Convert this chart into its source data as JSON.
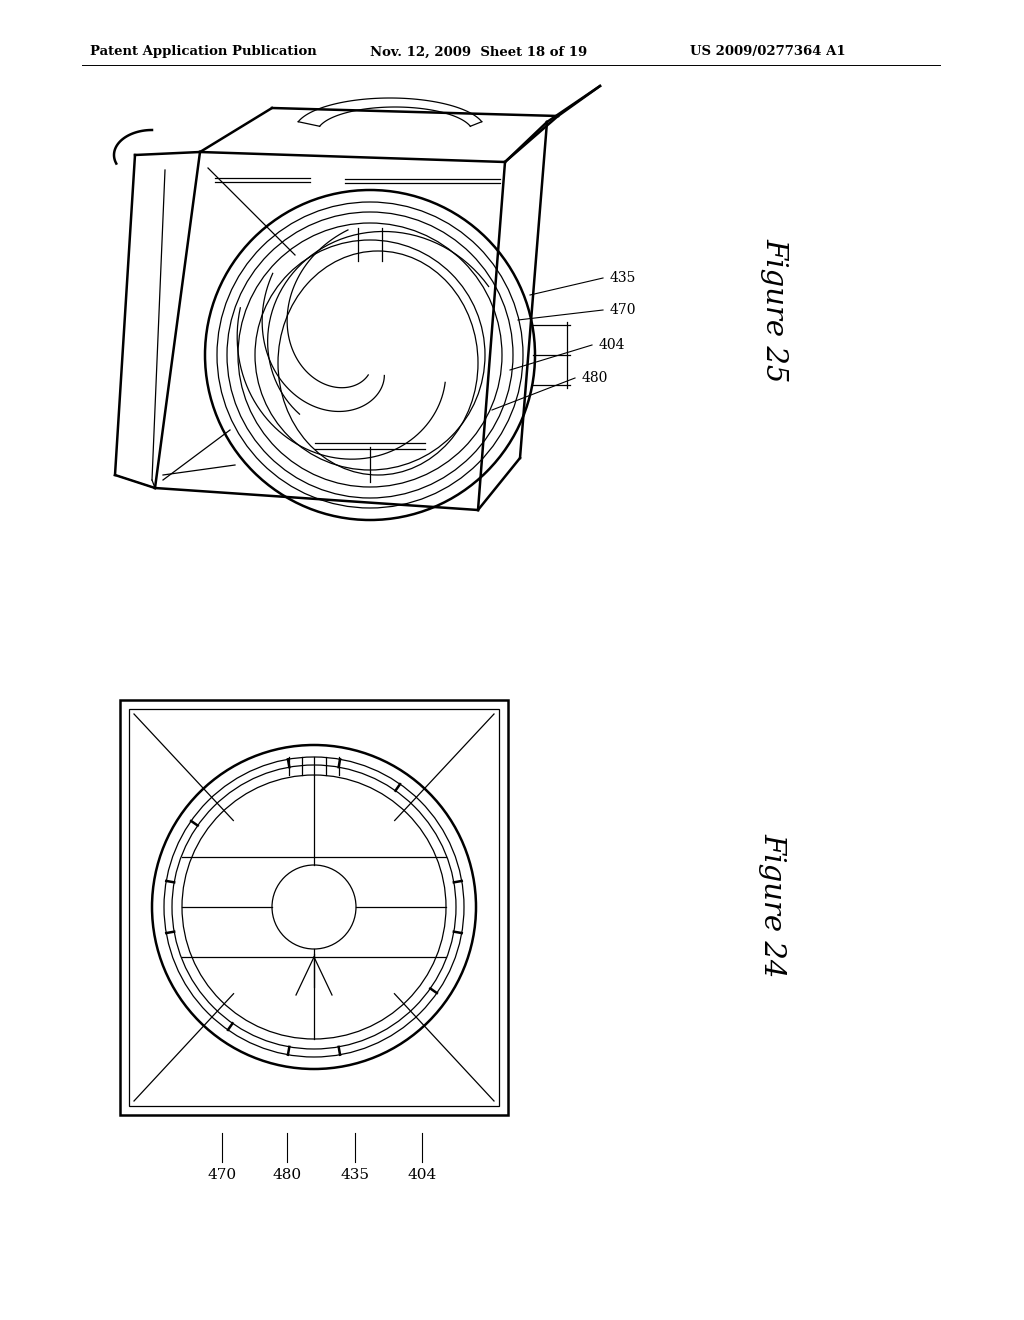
{
  "bg_color": "#ffffff",
  "header_left": "Patent Application Publication",
  "header_mid": "Nov. 12, 2009  Sheet 18 of 19",
  "header_right": "US 2009/0277364 A1",
  "fig25_label": "Figure 25",
  "fig24_label": "Figure 24",
  "black": "#000000",
  "lw_main": 1.4,
  "lw_thin": 0.9,
  "lw_thick": 1.8
}
